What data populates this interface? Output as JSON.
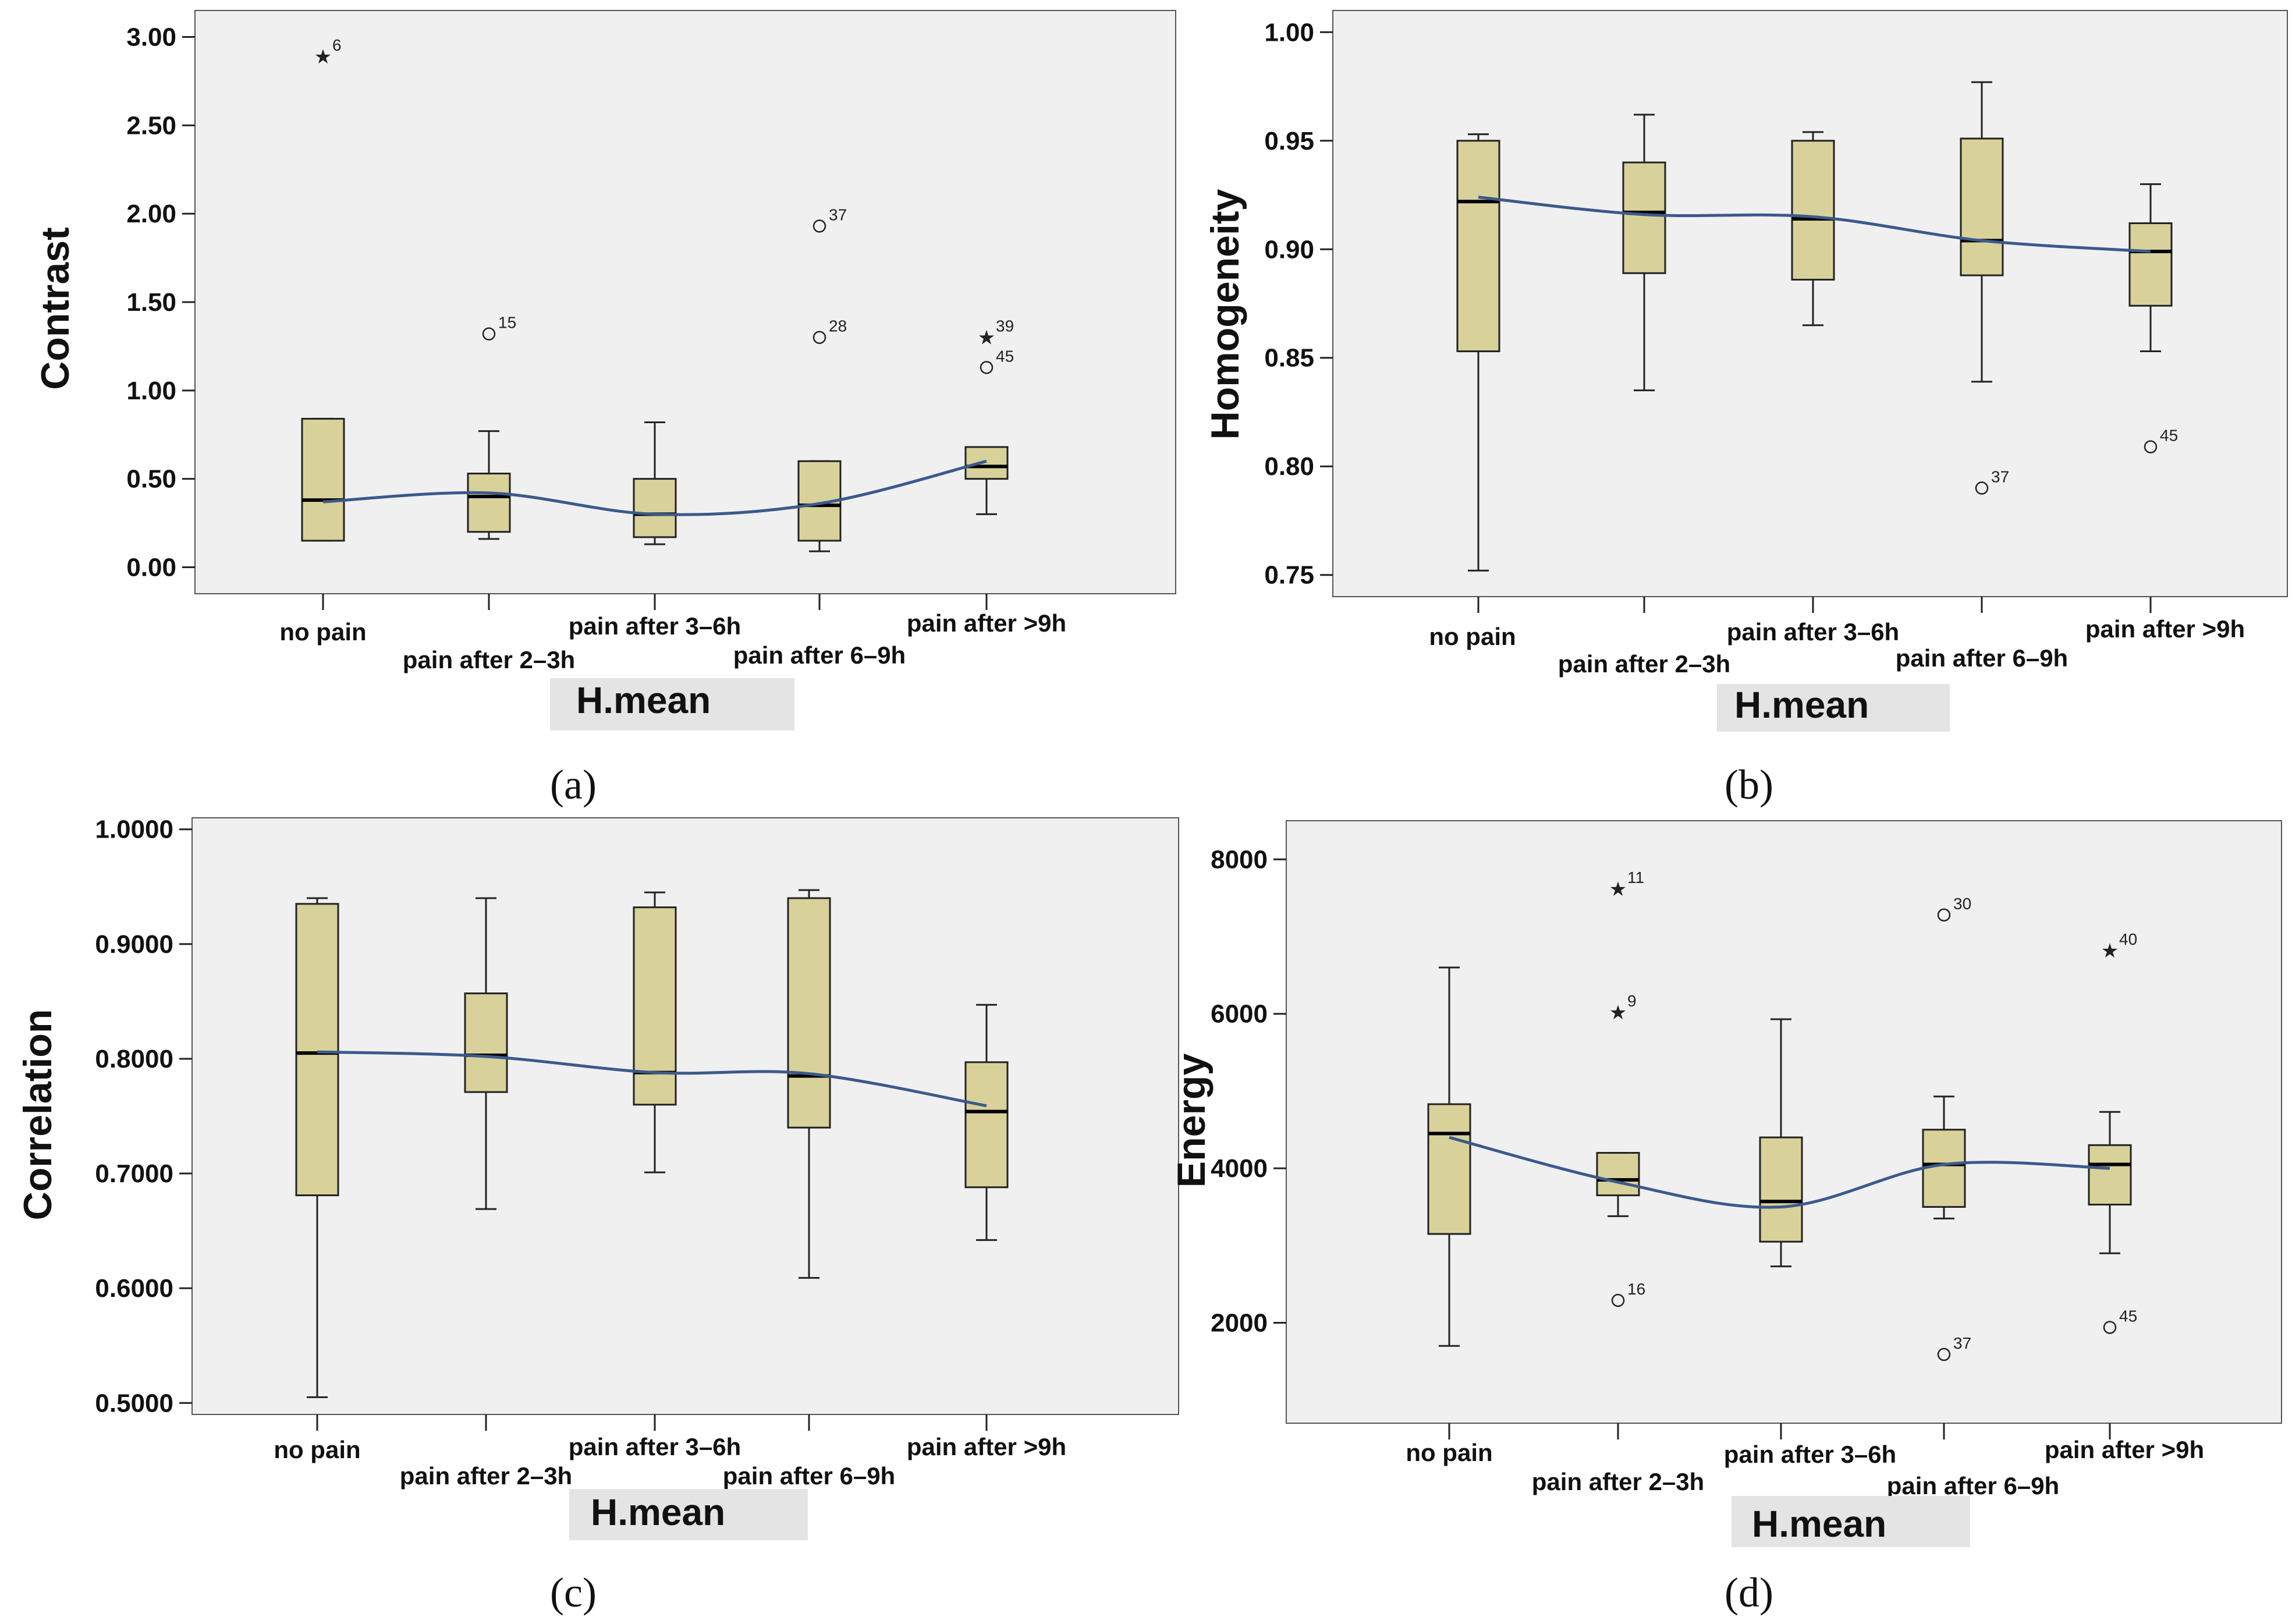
{
  "figure": {
    "style": {
      "box_fill": "#d8d19a",
      "box_stroke": "#222222",
      "plot_bg": "#f0f0f0",
      "trend_color": "#3b5a8c",
      "xlabel_bg": "#e4e4e4"
    }
  },
  "chart_data": [
    {
      "type": "box",
      "panel": "(a)",
      "title": "",
      "ylabel": "Contrast",
      "xlabel": "H.mean",
      "ylim": [
        -0.15,
        3.15
      ],
      "yticks": [
        0.0,
        0.5,
        1.0,
        1.5,
        2.0,
        2.5,
        3.0
      ],
      "yticklabels": [
        "0.00",
        "0.50",
        "1.00",
        "1.50",
        "2.00",
        "2.50",
        "3.00"
      ],
      "categories": [
        "no pain",
        "pain after 2–3h",
        "pain after 3–6h",
        "pain after 6–9h",
        "pain after >9h"
      ],
      "boxes": [
        {
          "whisker_low": 0.15,
          "q1": 0.15,
          "median": 0.38,
          "q3": 0.84,
          "whisker_high": 0.84
        },
        {
          "whisker_low": 0.16,
          "q1": 0.2,
          "median": 0.4,
          "q3": 0.53,
          "whisker_high": 0.77
        },
        {
          "whisker_low": 0.13,
          "q1": 0.17,
          "median": 0.3,
          "q3": 0.5,
          "whisker_high": 0.82
        },
        {
          "whisker_low": 0.09,
          "q1": 0.15,
          "median": 0.35,
          "q3": 0.6,
          "whisker_high": 0.6
        },
        {
          "whisker_low": 0.3,
          "q1": 0.5,
          "median": 0.57,
          "q3": 0.68,
          "whisker_high": 0.68
        }
      ],
      "outliers": [
        {
          "category": 0,
          "value": 2.89,
          "label": "6",
          "marker": "star"
        },
        {
          "category": 1,
          "value": 1.32,
          "label": "15",
          "marker": "circle"
        },
        {
          "category": 3,
          "value": 1.93,
          "label": "37",
          "marker": "circle"
        },
        {
          "category": 3,
          "value": 1.3,
          "label": "28",
          "marker": "circle"
        },
        {
          "category": 4,
          "value": 1.3,
          "label": "39",
          "marker": "star"
        },
        {
          "category": 4,
          "value": 1.13,
          "label": "45",
          "marker": "circle"
        }
      ],
      "trend": [
        0.37,
        0.42,
        0.3,
        0.36,
        0.6
      ]
    },
    {
      "type": "box",
      "panel": "(b)",
      "title": "",
      "ylabel": "Homogeneity",
      "xlabel": "H.mean",
      "ylim": [
        0.74,
        1.01
      ],
      "yticks": [
        0.75,
        0.8,
        0.85,
        0.9,
        0.95,
        1.0
      ],
      "yticklabels": [
        "0.75",
        "0.80",
        "0.85",
        "0.90",
        "0.95",
        "1.00"
      ],
      "categories": [
        "no pain",
        "pain after 2–3h",
        "pain after 3–6h",
        "pain after 6–9h",
        "pain after >9h"
      ],
      "boxes": [
        {
          "whisker_low": 0.752,
          "q1": 0.853,
          "median": 0.922,
          "q3": 0.95,
          "whisker_high": 0.953
        },
        {
          "whisker_low": 0.835,
          "q1": 0.889,
          "median": 0.917,
          "q3": 0.94,
          "whisker_high": 0.962
        },
        {
          "whisker_low": 0.865,
          "q1": 0.886,
          "median": 0.914,
          "q3": 0.95,
          "whisker_high": 0.954
        },
        {
          "whisker_low": 0.839,
          "q1": 0.888,
          "median": 0.904,
          "q3": 0.951,
          "whisker_high": 0.977
        },
        {
          "whisker_low": 0.853,
          "q1": 0.874,
          "median": 0.899,
          "q3": 0.912,
          "whisker_high": 0.93
        }
      ],
      "outliers": [
        {
          "category": 3,
          "value": 0.79,
          "label": "37",
          "marker": "circle"
        },
        {
          "category": 4,
          "value": 0.809,
          "label": "45",
          "marker": "circle"
        }
      ],
      "trend": [
        0.924,
        0.916,
        0.915,
        0.904,
        0.899
      ]
    },
    {
      "type": "box",
      "panel": "(c)",
      "title": "",
      "ylabel": "Correlation",
      "xlabel": "H.mean",
      "ylim": [
        0.49,
        1.01
      ],
      "yticks": [
        0.5,
        0.6,
        0.7,
        0.8,
        0.9,
        1.0
      ],
      "yticklabels": [
        "0.5000",
        "0.6000",
        "0.7000",
        "0.8000",
        "0.9000",
        "1.0000"
      ],
      "categories": [
        "no pain",
        "pain after 2–3h",
        "pain after 3–6h",
        "pain after 6–9h",
        "pain after >9h"
      ],
      "boxes": [
        {
          "whisker_low": 0.505,
          "q1": 0.681,
          "median": 0.805,
          "q3": 0.935,
          "whisker_high": 0.94
        },
        {
          "whisker_low": 0.669,
          "q1": 0.771,
          "median": 0.803,
          "q3": 0.857,
          "whisker_high": 0.94
        },
        {
          "whisker_low": 0.701,
          "q1": 0.76,
          "median": 0.788,
          "q3": 0.932,
          "whisker_high": 0.945
        },
        {
          "whisker_low": 0.609,
          "q1": 0.74,
          "median": 0.785,
          "q3": 0.94,
          "whisker_high": 0.947
        },
        {
          "whisker_low": 0.642,
          "q1": 0.688,
          "median": 0.754,
          "q3": 0.797,
          "whisker_high": 0.847
        }
      ],
      "outliers": [],
      "trend": [
        0.806,
        0.802,
        0.788,
        0.787,
        0.759
      ]
    },
    {
      "type": "box",
      "panel": "(d)",
      "title": "",
      "ylabel": "Energy",
      "xlabel": "H.mean",
      "ylim": [
        700,
        8500
      ],
      "yticks": [
        2000,
        4000,
        6000,
        8000
      ],
      "yticklabels": [
        "2000",
        "4000",
        "6000",
        "8000"
      ],
      "categories": [
        "no pain",
        "pain after 2–3h",
        "pain after 3–6h",
        "pain after 6–9h",
        "pain after >9h"
      ],
      "boxes": [
        {
          "whisker_low": 1700,
          "q1": 3150,
          "median": 4450,
          "q3": 4830,
          "whisker_high": 6600
        },
        {
          "whisker_low": 3380,
          "q1": 3650,
          "median": 3850,
          "q3": 4200,
          "whisker_high": 4200
        },
        {
          "whisker_low": 2730,
          "q1": 3050,
          "median": 3570,
          "q3": 4400,
          "whisker_high": 5930
        },
        {
          "whisker_low": 3350,
          "q1": 3500,
          "median": 4050,
          "q3": 4500,
          "whisker_high": 4930
        },
        {
          "whisker_low": 2900,
          "q1": 3530,
          "median": 4050,
          "q3": 4300,
          "whisker_high": 4730
        }
      ],
      "outliers": [
        {
          "category": 1,
          "value": 7620,
          "label": "11",
          "marker": "star"
        },
        {
          "category": 1,
          "value": 6020,
          "label": "9",
          "marker": "star"
        },
        {
          "category": 1,
          "value": 2290,
          "label": "16",
          "marker": "circle"
        },
        {
          "category": 3,
          "value": 7280,
          "label": "30",
          "marker": "circle"
        },
        {
          "category": 3,
          "value": 1590,
          "label": "37",
          "marker": "circle"
        },
        {
          "category": 4,
          "value": 6820,
          "label": "40",
          "marker": "star"
        },
        {
          "category": 4,
          "value": 1940,
          "label": "45",
          "marker": "circle"
        }
      ],
      "trend": [
        4400,
        3820,
        3500,
        4050,
        4000
      ]
    }
  ]
}
